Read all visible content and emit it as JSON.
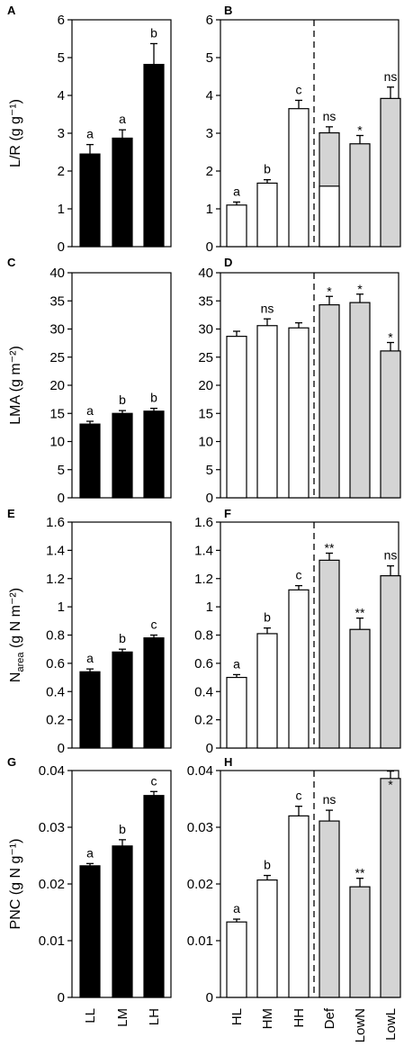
{
  "figure": {
    "ylabel_sub": "area"
  },
  "colors": {
    "black": "#000000",
    "white": "#ffffff",
    "gray": "#d4d4d4"
  },
  "categories": {
    "left": [
      "LL",
      "LM",
      "LH"
    ],
    "right": [
      "HL",
      "HM",
      "HH",
      "Def",
      "LowN",
      "LowL"
    ]
  },
  "rows": [
    {
      "ylabel": "L/R (g g⁻¹)",
      "yticks": [
        0,
        1,
        2,
        3,
        4,
        5,
        6
      ],
      "ytick_labels": [
        "0",
        "1",
        "2",
        "3",
        "4",
        "5",
        "6"
      ],
      "ylim": [
        0,
        6
      ]
    },
    {
      "ylabel": "LMA (g m⁻²)",
      "yticks": [
        0,
        5,
        10,
        15,
        20,
        25,
        30,
        35,
        40
      ],
      "ytick_labels": [
        "0",
        "5",
        "10",
        "15",
        "20",
        "25",
        "30",
        "35",
        "40"
      ],
      "ylim": [
        0,
        40
      ]
    },
    {
      "ylabel": "N",
      "ylabel_tail": " (g N m⁻²)",
      "yticks": [
        0,
        0.2,
        0.4,
        0.6,
        0.8,
        1.0,
        1.2,
        1.4,
        1.6
      ],
      "ytick_labels": [
        "0",
        "0.2",
        "0.4",
        "0.6",
        "0.8",
        "1",
        "1.2",
        "1.4",
        "1.6"
      ],
      "ylim": [
        0,
        1.6
      ]
    },
    {
      "ylabel": "PNC (g N g⁻¹)",
      "yticks": [
        0,
        0.01,
        0.02,
        0.03,
        0.04
      ],
      "ytick_labels": [
        "0",
        "0.01",
        "0.02",
        "0.03",
        "0.04"
      ],
      "ylim": [
        0,
        0.04
      ]
    }
  ],
  "chart_data": [
    {
      "panel": "A",
      "type": "bar",
      "ylabel": "L/R (g g⁻¹)",
      "ylim": [
        0,
        6
      ],
      "categories": [
        "LL",
        "LM",
        "LH"
      ],
      "values": [
        2.45,
        2.87,
        4.82
      ],
      "errors": [
        0.25,
        0.22,
        0.55
      ],
      "fills": [
        "black",
        "black",
        "black"
      ],
      "annotations": [
        "a",
        "a",
        "b"
      ]
    },
    {
      "panel": "B",
      "type": "bar",
      "ylabel": "L/R (g g⁻¹)",
      "ylim": [
        0,
        6
      ],
      "categories": [
        "HL",
        "HM",
        "HH",
        "Def",
        "LowN",
        "LowL"
      ],
      "values": [
        1.1,
        1.68,
        3.65,
        3.01,
        2.72,
        3.92
      ],
      "errors": [
        0.08,
        0.09,
        0.22,
        0.16,
        0.22,
        0.3
      ],
      "fills": [
        "white",
        "white",
        "white",
        "gray",
        "gray",
        "gray"
      ],
      "annotations": [
        "a",
        "b",
        "c",
        "ns",
        "*",
        "ns"
      ],
      "stacked_lower": {
        "category": "Def",
        "value": 1.6
      }
    },
    {
      "panel": "C",
      "type": "bar",
      "ylabel": "LMA (g m⁻²)",
      "ylim": [
        0,
        40
      ],
      "categories": [
        "LL",
        "LM",
        "LH"
      ],
      "values": [
        13.1,
        15.0,
        15.4
      ],
      "errors": [
        0.5,
        0.5,
        0.5
      ],
      "fills": [
        "black",
        "black",
        "black"
      ],
      "annotations": [
        "a",
        "b",
        "b"
      ]
    },
    {
      "panel": "D",
      "type": "bar",
      "ylabel": "LMA (g m⁻²)",
      "ylim": [
        0,
        40
      ],
      "categories": [
        "HL",
        "HM",
        "HH",
        "Def",
        "LowN",
        "LowL"
      ],
      "values": [
        28.7,
        30.6,
        30.2,
        34.3,
        34.7,
        26.1
      ],
      "errors": [
        0.9,
        1.2,
        0.9,
        1.5,
        1.5,
        1.5
      ],
      "fills": [
        "white",
        "white",
        "white",
        "gray",
        "gray",
        "gray"
      ],
      "annotations": [
        "",
        "ns",
        "",
        "*",
        "*",
        "*"
      ]
    },
    {
      "panel": "E",
      "type": "bar",
      "ylabel": "Narea (g N m⁻²)",
      "ylim": [
        0,
        1.6
      ],
      "categories": [
        "LL",
        "LM",
        "LH"
      ],
      "values": [
        0.54,
        0.68,
        0.78
      ],
      "errors": [
        0.02,
        0.02,
        0.02
      ],
      "fills": [
        "black",
        "black",
        "black"
      ],
      "annotations": [
        "a",
        "b",
        "c"
      ]
    },
    {
      "panel": "F",
      "type": "bar",
      "ylabel": "Narea (g N m⁻²)",
      "ylim": [
        0,
        1.6
      ],
      "categories": [
        "HL",
        "HM",
        "HH",
        "Def",
        "LowN",
        "LowL"
      ],
      "values": [
        0.5,
        0.81,
        1.12,
        1.33,
        0.84,
        1.22
      ],
      "errors": [
        0.02,
        0.04,
        0.03,
        0.05,
        0.08,
        0.07
      ],
      "fills": [
        "white",
        "white",
        "white",
        "gray",
        "gray",
        "gray"
      ],
      "annotations": [
        "a",
        "b",
        "c",
        "**",
        "**",
        "ns"
      ]
    },
    {
      "panel": "G",
      "type": "bar",
      "ylabel": "PNC (g N g⁻¹)",
      "ylim": [
        0,
        0.04
      ],
      "categories": [
        "LL",
        "LM",
        "LH"
      ],
      "values": [
        0.0232,
        0.0267,
        0.0356
      ],
      "errors": [
        0.0004,
        0.0011,
        0.0007
      ],
      "fills": [
        "black",
        "black",
        "black"
      ],
      "annotations": [
        "a",
        "b",
        "c"
      ]
    },
    {
      "panel": "H",
      "type": "bar",
      "ylabel": "PNC (g N g⁻¹)",
      "ylim": [
        0,
        0.04
      ],
      "categories": [
        "HL",
        "HM",
        "HH",
        "Def",
        "LowN",
        "LowL"
      ],
      "values": [
        0.0133,
        0.0207,
        0.032,
        0.0311,
        0.0195,
        0.0386
      ],
      "errors": [
        0.0005,
        0.0008,
        0.0017,
        0.0019,
        0.0015,
        0.0013
      ],
      "fills": [
        "white",
        "white",
        "white",
        "gray",
        "gray",
        "gray"
      ],
      "annotations": [
        "a",
        "b",
        "c",
        "ns",
        "**",
        "*"
      ]
    }
  ]
}
